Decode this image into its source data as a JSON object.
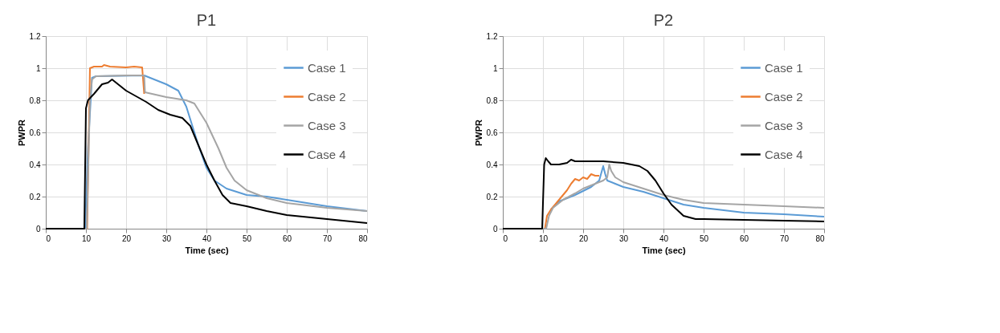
{
  "chart_data": [
    {
      "type": "line",
      "title": "P1",
      "xlabel": "Time (sec)",
      "ylabel": "PWPR",
      "xlim": [
        0,
        80
      ],
      "ylim": [
        0,
        1.2
      ],
      "xticks": [
        0,
        10,
        20,
        30,
        40,
        50,
        60,
        70,
        80
      ],
      "yticks": [
        0,
        0.2,
        0.4,
        0.6,
        0.8,
        1,
        1.2
      ],
      "grid": true,
      "legend": "top right",
      "series": [
        {
          "name": "Case 1",
          "color": "#5b9bd5",
          "x": [
            0,
            9.8,
            10.5,
            11.5,
            12.5,
            24.5,
            25,
            30,
            33,
            35,
            36,
            38,
            40,
            42,
            45,
            50,
            55,
            60,
            70,
            80
          ],
          "values": [
            0,
            0,
            0.5,
            0.94,
            0.95,
            0.955,
            0.95,
            0.9,
            0.86,
            0.76,
            0.68,
            0.52,
            0.38,
            0.3,
            0.25,
            0.21,
            0.2,
            0.18,
            0.14,
            0.11
          ]
        },
        {
          "name": "Case 2",
          "color": "#ed7d31",
          "x": [
            0,
            10.3,
            11,
            12,
            14,
            14.5,
            16,
            20,
            22,
            24,
            24.5
          ],
          "values": [
            0,
            0,
            1.0,
            1.01,
            1.01,
            1.02,
            1.01,
            1.005,
            1.01,
            1.005,
            0.84
          ]
        },
        {
          "name": "Case 3",
          "color": "#a5a5a5",
          "x": [
            0,
            10.2,
            11,
            11.5,
            12.5,
            20,
            24.5,
            24.7,
            30,
            35,
            37,
            40,
            43,
            45,
            47,
            50,
            55,
            60,
            70,
            80
          ],
          "values": [
            0,
            0,
            0.8,
            0.93,
            0.95,
            0.955,
            0.955,
            0.85,
            0.82,
            0.8,
            0.78,
            0.66,
            0.5,
            0.38,
            0.3,
            0.24,
            0.19,
            0.16,
            0.13,
            0.11
          ]
        },
        {
          "name": "Case 4",
          "color": "#000000",
          "x": [
            0,
            9.6,
            10,
            10.5,
            12,
            14,
            15.5,
            16.5,
            18,
            20,
            25,
            28,
            31,
            34,
            36,
            38,
            40,
            42,
            44,
            46,
            50,
            55,
            60,
            70,
            80
          ],
          "values": [
            0,
            0,
            0.75,
            0.8,
            0.84,
            0.9,
            0.91,
            0.93,
            0.9,
            0.86,
            0.79,
            0.74,
            0.71,
            0.69,
            0.64,
            0.52,
            0.4,
            0.3,
            0.21,
            0.16,
            0.14,
            0.11,
            0.085,
            0.06,
            0.035
          ]
        }
      ]
    },
    {
      "type": "line",
      "title": "P2",
      "xlabel": "Time (sec)",
      "ylabel": "PWPR",
      "xlim": [
        0,
        80
      ],
      "ylim": [
        0,
        1.2
      ],
      "xticks": [
        0,
        10,
        20,
        30,
        40,
        50,
        60,
        70,
        80
      ],
      "yticks": [
        0,
        0.2,
        0.4,
        0.6,
        0.8,
        1,
        1.2
      ],
      "grid": true,
      "legend": "top right",
      "series": [
        {
          "name": "Case 1",
          "color": "#5b9bd5",
          "x": [
            12,
            14,
            18,
            22,
            24,
            25,
            25.5,
            26,
            28,
            30,
            35,
            40,
            45,
            50,
            60,
            70,
            80
          ],
          "values": [
            0.12,
            0.17,
            0.21,
            0.26,
            0.3,
            0.39,
            0.34,
            0.3,
            0.28,
            0.26,
            0.23,
            0.19,
            0.15,
            0.13,
            0.1,
            0.09,
            0.075
          ]
        },
        {
          "name": "Case 2",
          "color": "#ed7d31",
          "x": [
            10.5,
            11,
            12,
            14,
            16,
            17,
            18,
            19,
            20,
            21,
            22,
            23,
            24
          ],
          "values": [
            0,
            0.08,
            0.12,
            0.18,
            0.24,
            0.28,
            0.31,
            0.3,
            0.32,
            0.31,
            0.34,
            0.33,
            0.33
          ]
        },
        {
          "name": "Case 3",
          "color": "#a5a5a5",
          "x": [
            0,
            10.8,
            11.5,
            12.5,
            15,
            18,
            20,
            22,
            24,
            25,
            26,
            26.5,
            27,
            28,
            30,
            35,
            40,
            45,
            50,
            60,
            70,
            80
          ],
          "values": [
            0,
            0,
            0.08,
            0.13,
            0.18,
            0.22,
            0.25,
            0.27,
            0.29,
            0.3,
            0.32,
            0.4,
            0.36,
            0.32,
            0.29,
            0.25,
            0.21,
            0.18,
            0.16,
            0.15,
            0.14,
            0.13
          ]
        },
        {
          "name": "Case 4",
          "color": "#000000",
          "x": [
            0,
            9.8,
            10.3,
            10.7,
            11.3,
            12,
            14,
            16,
            17,
            18,
            25,
            30,
            34,
            36,
            38,
            40,
            42,
            45,
            48,
            50,
            60,
            70,
            80
          ],
          "values": [
            0,
            0,
            0.4,
            0.44,
            0.42,
            0.4,
            0.4,
            0.41,
            0.43,
            0.42,
            0.42,
            0.41,
            0.39,
            0.36,
            0.3,
            0.22,
            0.15,
            0.08,
            0.06,
            0.06,
            0.055,
            0.05,
            0.045
          ]
        }
      ]
    }
  ]
}
